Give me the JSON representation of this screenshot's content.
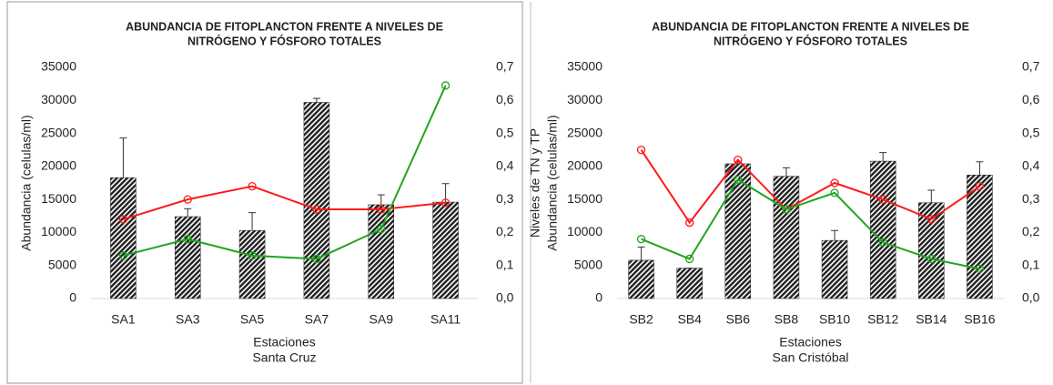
{
  "chart_data": [
    {
      "type": "bar",
      "title": [
        "ABUNDANCIA  DE FITOPLANCTON FRENTE A NIVELES DE",
        "NITRÓGENO Y FÓSFORO TOTALES"
      ],
      "ylabel": "Abundancia  (celulas/ml)",
      "y2label": "Niveles de TN y TP",
      "xlabel": "Estaciones",
      "xlabel_sub": "Santa Cruz",
      "categories": [
        "SA1",
        "SA3",
        "SA5",
        "SA7",
        "SA9",
        "SA11"
      ],
      "values": [
        18300,
        12400,
        10300,
        29700,
        14200,
        14600
      ],
      "errors": [
        6000,
        1200,
        2700,
        600,
        1500,
        2800
      ],
      "color": "#222222",
      "series": [
        {
          "color": "#ff1a1a",
          "axis": "y2",
          "values": [
            0.24,
            0.3,
            0.34,
            0.27,
            0.27,
            0.29
          ]
        },
        {
          "color": "#1fa51f",
          "axis": "y2",
          "values": [
            0.13,
            0.18,
            0.13,
            0.12,
            0.21,
            0.645
          ]
        }
      ],
      "ylim": [
        0,
        35000
      ],
      "yticks": [
        0,
        5000,
        10000,
        15000,
        20000,
        25000,
        30000,
        35000
      ],
      "y2lim": [
        0,
        0.7
      ],
      "y2ticks": [
        {
          "value": 0,
          "label": "0,0"
        },
        {
          "value": 0.1,
          "label": "0,1"
        },
        {
          "value": 0.2,
          "label": "0,2"
        },
        {
          "value": 0.3,
          "label": "0,3"
        },
        {
          "value": 0.4,
          "label": "0,4"
        },
        {
          "value": 0.5,
          "label": "0,5"
        },
        {
          "value": 0.6,
          "label": "0,6"
        },
        {
          "value": 0.7,
          "label": "0,7"
        }
      ]
    },
    {
      "type": "bar",
      "title": [
        "ABUNDANCIA  DE FITOPLANCTON FRENTE A NIVELES DE",
        "NITRÓGENO Y FÓSFORO TOTALES"
      ],
      "ylabel": "Abundancia  (celulas/ml)",
      "y2label": "Niveles de TN y TP",
      "xlabel": "Estaciones",
      "xlabel_sub": "San Cristóbal",
      "categories": [
        "SB2",
        "SB4",
        "SB6",
        "SB8",
        "SB10",
        "SB12",
        "SB14",
        "SB16"
      ],
      "values": [
        5800,
        4600,
        20400,
        18500,
        8800,
        20800,
        14500,
        18700
      ],
      "errors": [
        2000,
        0,
        300,
        1300,
        1500,
        1300,
        1900,
        2000
      ],
      "color": "#222222",
      "series": [
        {
          "color": "#ff1a1a",
          "axis": "y2",
          "values": [
            0.45,
            0.23,
            0.42,
            0.27,
            0.35,
            0.3,
            0.24,
            0.34
          ]
        },
        {
          "color": "#1fa51f",
          "axis": "y2",
          "values": [
            0.18,
            0.12,
            0.36,
            0.27,
            0.32,
            0.17,
            0.12,
            0.09
          ]
        }
      ],
      "ylim": [
        0,
        35000
      ],
      "yticks": [
        0,
        5000,
        10000,
        15000,
        20000,
        25000,
        30000,
        35000
      ],
      "y2lim": [
        0,
        0.7
      ],
      "y2ticks": [
        {
          "value": 0,
          "label": "0,0"
        },
        {
          "value": 0.1,
          "label": "0,1"
        },
        {
          "value": 0.2,
          "label": "0,2"
        },
        {
          "value": 0.3,
          "label": "0,3"
        },
        {
          "value": 0.4,
          "label": "0,4"
        },
        {
          "value": 0.5,
          "label": "0,5"
        },
        {
          "value": 0.6,
          "label": "0,6"
        },
        {
          "value": 0.7,
          "label": "0,7"
        }
      ]
    }
  ]
}
